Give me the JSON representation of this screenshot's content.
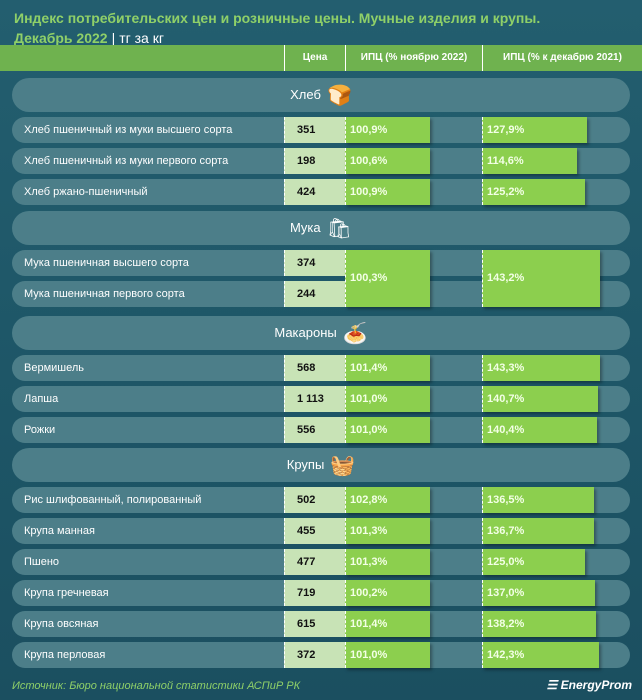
{
  "header": {
    "title": "Индекс потребительских цен и розничные цены. Мучные изделия и крупы.",
    "period": "Декабрь 2022",
    "unit": "тг за кг"
  },
  "columns": {
    "price": "Цена",
    "cpi_month": "ИПЦ (% ноябрю 2022)",
    "cpi_year": "ИПЦ (% к декабрю 2021)"
  },
  "sections": [
    {
      "name": "Хлеб",
      "icon": "bread-icon",
      "rows": [
        {
          "label": "Хлеб пшеничный из муки высшего сорта",
          "price": "351",
          "cpi_month": "100,9%",
          "cpi_year": "127,9%"
        },
        {
          "label": "Хлеб пшеничный из муки первого сорта",
          "price": "198",
          "cpi_month": "100,6%",
          "cpi_year": "114,6%"
        },
        {
          "label": "Хлеб ржано-пшеничный",
          "price": "424",
          "cpi_month": "100,9%",
          "cpi_year": "125,2%"
        }
      ]
    },
    {
      "name": "Мука",
      "icon": "flour-sack-icon",
      "merged": true,
      "cpi_month": "100,3%",
      "cpi_year": "143,2%",
      "rows": [
        {
          "label": "Мука пшеничная высшего сорта",
          "price": "374"
        },
        {
          "label": "Мука пшеничная первого сорта",
          "price": "244"
        }
      ]
    },
    {
      "name": "Макароны",
      "icon": "pasta-plate-icon",
      "rows": [
        {
          "label": "Вермишель",
          "price": "568",
          "cpi_month": "101,4%",
          "cpi_year": "143,3%"
        },
        {
          "label": "Лапша",
          "price": "1 113",
          "cpi_month": "101,0%",
          "cpi_year": "140,7%"
        },
        {
          "label": "Рожки",
          "price": "556",
          "cpi_month": "101,0%",
          "cpi_year": "140,4%"
        }
      ]
    },
    {
      "name": "Крупы",
      "icon": "grain-basket-icon",
      "rows": [
        {
          "label": "Рис шлифованный, полированный",
          "price": "502",
          "cpi_month": "102,8%",
          "cpi_year": "136,5%"
        },
        {
          "label": "Крупа манная",
          "price": "455",
          "cpi_month": "101,3%",
          "cpi_year": "136,7%"
        },
        {
          "label": "Пшено",
          "price": "477",
          "cpi_month": "101,3%",
          "cpi_year": "125,0%"
        },
        {
          "label": "Крупа гречневая",
          "price": "719",
          "cpi_month": "100,2%",
          "cpi_year": "137,0%"
        },
        {
          "label": "Крупа овсяная",
          "price": "615",
          "cpi_month": "101,4%",
          "cpi_year": "138,2%"
        },
        {
          "label": "Крупа перловая",
          "price": "372",
          "cpi_month": "101,0%",
          "cpi_year": "142,3%"
        }
      ]
    }
  ],
  "footer": {
    "source": "Источник: Бюро национальной статистики АСПиР РК",
    "brand": "EnergyProm"
  },
  "colors": {
    "bar": "#8ccf4e",
    "price_bg": "#c8e3b6",
    "row": "#4c7e89",
    "accent": "#8fd068"
  }
}
